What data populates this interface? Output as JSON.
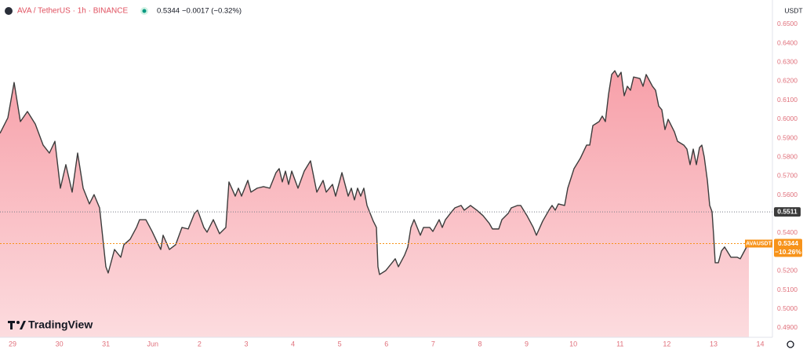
{
  "chart_data": {
    "type": "area",
    "title": "AVA / TetherUS · 1h · BINANCE",
    "last_price": 0.5344,
    "change": "−0.0017 (−0.32%)",
    "y_axis_label": "USDT",
    "watermark": "TradingView",
    "prev_close": 0.5511,
    "last_change_pct": {
      "value": -10.26,
      "label": "−10.26%"
    },
    "xlim": [
      28.732,
      45.259
    ],
    "ylim": [
      0.485,
      0.6545
    ],
    "grid": false,
    "xticks": [
      {
        "value": 29,
        "label": "29"
      },
      {
        "value": 30,
        "label": "30"
      },
      {
        "value": 31,
        "label": "31"
      },
      {
        "value": 32,
        "label": "Jun"
      },
      {
        "value": 33,
        "label": "2"
      },
      {
        "value": 34,
        "label": "3"
      },
      {
        "value": 35,
        "label": "4"
      },
      {
        "value": 36,
        "label": "5"
      },
      {
        "value": 37,
        "label": "6"
      },
      {
        "value": 38,
        "label": "7"
      },
      {
        "value": 39,
        "label": "8"
      },
      {
        "value": 40,
        "label": "9"
      },
      {
        "value": 41,
        "label": "10"
      },
      {
        "value": 42,
        "label": "11"
      },
      {
        "value": 43,
        "label": "12"
      },
      {
        "value": 44,
        "label": "13"
      },
      {
        "value": 45,
        "label": "14"
      }
    ],
    "yticks": [
      {
        "value": 0.49,
        "label": "0.4900"
      },
      {
        "value": 0.5,
        "label": "0.5000"
      },
      {
        "value": 0.51,
        "label": "0.5100"
      },
      {
        "value": 0.52,
        "label": "0.5200"
      },
      {
        "value": 0.54,
        "label": "0.5400"
      },
      {
        "value": 0.56,
        "label": "0.5600"
      },
      {
        "value": 0.57,
        "label": "0.5700"
      },
      {
        "value": 0.58,
        "label": "0.5800"
      },
      {
        "value": 0.59,
        "label": "0.5900"
      },
      {
        "value": 0.6,
        "label": "0.6000"
      },
      {
        "value": 0.61,
        "label": "0.6100"
      },
      {
        "value": 0.62,
        "label": "0.6200"
      },
      {
        "value": 0.63,
        "label": "0.6300"
      },
      {
        "value": 0.64,
        "label": "0.6400"
      },
      {
        "value": 0.65,
        "label": "0.6500"
      }
    ],
    "x": [
      28.732,
      28.9,
      29.034,
      29.168,
      29.319,
      29.487,
      29.655,
      29.789,
      29.907,
      30.024,
      30.141,
      30.276,
      30.393,
      30.511,
      30.645,
      30.745,
      30.863,
      30.997,
      31.047,
      31.182,
      31.316,
      31.383,
      31.517,
      31.652,
      31.719,
      31.853,
      31.987,
      32.121,
      32.172,
      32.222,
      32.356,
      32.49,
      32.625,
      32.759,
      32.893,
      32.96,
      33.094,
      33.162,
      33.296,
      33.43,
      33.564,
      33.631,
      33.766,
      33.833,
      33.9,
      34.034,
      34.101,
      34.235,
      34.37,
      34.504,
      34.638,
      34.705,
      34.772,
      34.84,
      34.907,
      34.974,
      35.108,
      35.242,
      35.376,
      35.511,
      35.645,
      35.712,
      35.846,
      35.913,
      36.048,
      36.182,
      36.249,
      36.316,
      36.383,
      36.45,
      36.517,
      36.585,
      36.719,
      36.786,
      36.819,
      36.853,
      36.987,
      37.121,
      37.189,
      37.256,
      37.39,
      37.457,
      37.524,
      37.591,
      37.726,
      37.793,
      37.927,
      37.994,
      38.128,
      38.195,
      38.263,
      38.397,
      38.464,
      38.598,
      38.665,
      38.799,
      38.934,
      39.068,
      39.202,
      39.269,
      39.403,
      39.471,
      39.605,
      39.672,
      39.806,
      39.873,
      40.008,
      40.142,
      40.209,
      40.343,
      40.477,
      40.544,
      40.612,
      40.679,
      40.813,
      40.88,
      41.014,
      41.148,
      41.283,
      41.35,
      41.417,
      41.551,
      41.618,
      41.685,
      41.753,
      41.82,
      41.887,
      41.954,
      42.021,
      42.088,
      42.155,
      42.222,
      42.289,
      42.424,
      42.491,
      42.558,
      42.692,
      42.759,
      42.826,
      42.893,
      42.96,
      43.028,
      43.162,
      43.229,
      43.363,
      43.43,
      43.497,
      43.565,
      43.632,
      43.699,
      43.749,
      43.8,
      43.867,
      43.917,
      43.967,
      44.001,
      44.035,
      44.102,
      44.169,
      44.236,
      44.37,
      44.504,
      44.571,
      44.705,
      44.756
    ],
    "series": [
      {
        "name": "AVAUSDT",
        "color": "#3c3c3c",
        "fill": "url(#areaGrad)",
        "values": [
          0.5925,
          0.6007,
          0.6193,
          0.5987,
          0.604,
          0.5974,
          0.5863,
          0.5821,
          0.5883,
          0.5636,
          0.576,
          0.5615,
          0.5821,
          0.5636,
          0.5553,
          0.5602,
          0.5532,
          0.5222,
          0.5189,
          0.5313,
          0.5272,
          0.5338,
          0.5367,
          0.5429,
          0.547,
          0.547,
          0.5408,
          0.5338,
          0.5313,
          0.5388,
          0.5313,
          0.5338,
          0.5429,
          0.5421,
          0.5503,
          0.552,
          0.5429,
          0.5404,
          0.547,
          0.5396,
          0.5429,
          0.5669,
          0.5594,
          0.5636,
          0.5594,
          0.5677,
          0.5615,
          0.5636,
          0.5644,
          0.5636,
          0.5718,
          0.5739,
          0.5669,
          0.5726,
          0.5656,
          0.5726,
          0.5636,
          0.5726,
          0.578,
          0.5615,
          0.5677,
          0.5615,
          0.5656,
          0.5594,
          0.5718,
          0.5594,
          0.5636,
          0.5574,
          0.5636,
          0.5594,
          0.5636,
          0.5545,
          0.5462,
          0.5429,
          0.5222,
          0.5181,
          0.5202,
          0.5243,
          0.5264,
          0.5222,
          0.5284,
          0.5326,
          0.5429,
          0.547,
          0.5388,
          0.5429,
          0.5429,
          0.5408,
          0.547,
          0.5429,
          0.547,
          0.5512,
          0.5532,
          0.5545,
          0.552,
          0.5545,
          0.552,
          0.5491,
          0.545,
          0.5421,
          0.5421,
          0.547,
          0.5503,
          0.5532,
          0.5545,
          0.5545,
          0.5491,
          0.5429,
          0.5388,
          0.5462,
          0.552,
          0.5545,
          0.552,
          0.5553,
          0.5545,
          0.5636,
          0.5739,
          0.5793,
          0.5863,
          0.5863,
          0.5966,
          0.5987,
          0.6016,
          0.5987,
          0.6131,
          0.6235,
          0.6255,
          0.6222,
          0.6247,
          0.6123,
          0.6173,
          0.6152,
          0.6222,
          0.6214,
          0.6173,
          0.6235,
          0.6173,
          0.6152,
          0.6069,
          0.6049,
          0.5945,
          0.5999,
          0.5933,
          0.5883,
          0.5863,
          0.5842,
          0.576,
          0.5842,
          0.576,
          0.585,
          0.5863,
          0.5801,
          0.5677,
          0.5545,
          0.5512,
          0.5388,
          0.5243,
          0.5243,
          0.5305,
          0.5326,
          0.5272,
          0.5272,
          0.5264,
          0.5326,
          0.5344
        ]
      }
    ]
  }
}
